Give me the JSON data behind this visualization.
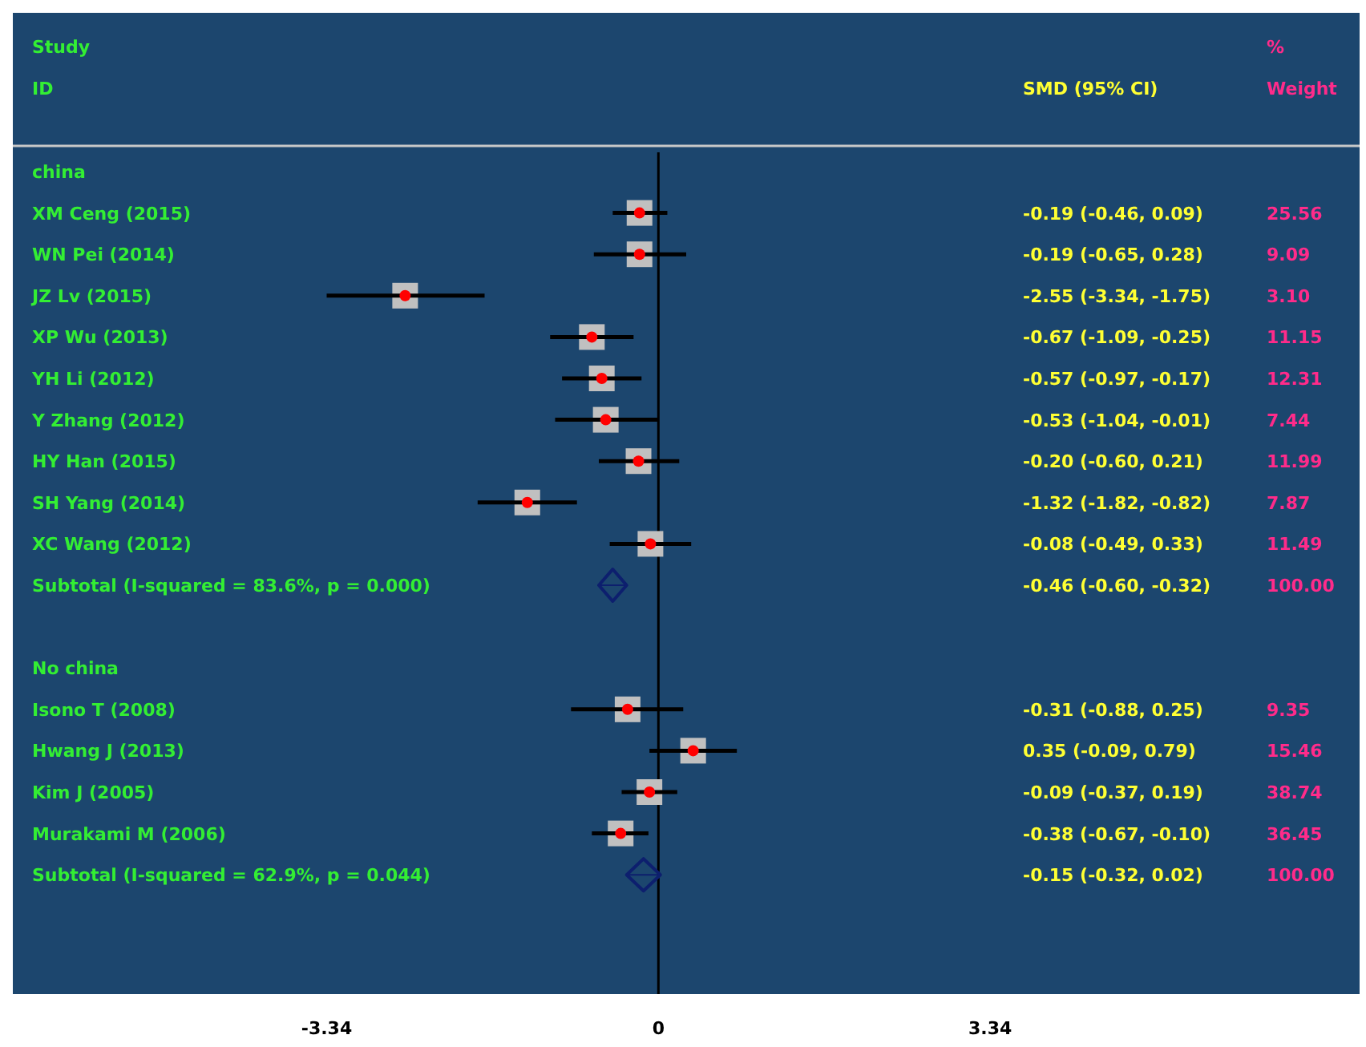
{
  "chart_data": {
    "type": "scatter",
    "orientation": "horizontal",
    "annotations": [
      "Study",
      "ID",
      "SMD (95% CI)",
      "%",
      "Weight",
      "-0.19 (-0.46, 0.09)",
      "25.56",
      "-0.19 (-0.65, 0.28)",
      "9.09",
      "-2.55 (-3.34, -1.75)",
      "3.10",
      "-0.67 (-1.09, -0.25)",
      "11.15",
      "-0.57 (-0.97, -0.17)",
      "12.31",
      "-0.53 (-1.04, -0.01)",
      "7.44",
      "-0.20 (-0.60, 0.21)",
      "11.99",
      "-1.32 (-1.82, -0.82)",
      "7.87",
      "-0.08 (-0.49, 0.33)",
      "11.49",
      "-0.46 (-0.60, -0.32)",
      "100.00",
      "-0.31 (-0.88, 0.25)",
      "9.35",
      "0.35 (-0.09, 0.79)",
      "15.46",
      "-0.09 (-0.37, 0.19)",
      "38.74",
      "-0.38 (-0.67, -0.10)",
      "36.45",
      "-0.15 (-0.32, 0.02)",
      "100.00"
    ],
    "categories": [
      "china",
      "XM Ceng (2015)",
      "WN Pei (2014)",
      "JZ Lv (2015)",
      "XP Wu (2013)",
      "YH Li (2012)",
      "Y Zhang (2012)",
      "HY Han (2015)",
      "SH Yang (2014)",
      "XC Wang (2012)",
      "Subtotal  (I-squared = 83.6%, p = 0.000)",
      null,
      "No china",
      "Isono T (2008)",
      "Hwang J (2013)",
      "Kim J  (2005)",
      "Murakami M (2006)",
      "Subtotal  (I-squared = 62.9%, p = 0.044)"
    ],
    "series": [
      {
        "color": "#c0c0c0",
        "marker": "square",
        "values": [
          null,
          -0.19,
          -0.19,
          -2.55,
          -0.67,
          -0.57,
          -0.53,
          -0.2,
          -1.32,
          -0.08,
          null,
          null,
          null,
          -0.31,
          0.35,
          -0.09,
          -0.38,
          null
        ],
        "errors": [
          null,
          [
            -0.46,
            0.09
          ],
          [
            -0.65,
            0.28
          ],
          [
            -3.34,
            -1.75
          ],
          [
            -1.09,
            -0.25
          ],
          [
            -0.97,
            -0.17
          ],
          [
            -1.04,
            -0.01
          ],
          [
            -0.6,
            0.21
          ],
          [
            -1.82,
            -0.82
          ],
          [
            -0.49,
            0.33
          ],
          null,
          null,
          null,
          [
            -0.88,
            0.25
          ],
          [
            -0.09,
            0.79
          ],
          [
            -0.37,
            0.19
          ],
          [
            -0.67,
            -0.1
          ],
          null
        ]
      },
      {
        "color": "#0d1f6e",
        "marker": "diamond",
        "values": [
          null,
          null,
          null,
          null,
          null,
          null,
          null,
          null,
          null,
          null,
          -0.46,
          null,
          null,
          null,
          null,
          null,
          null,
          -0.15
        ],
        "errors": [
          null,
          null,
          null,
          null,
          null,
          null,
          null,
          null,
          null,
          null,
          [
            -0.6,
            -0.32
          ],
          null,
          null,
          null,
          null,
          null,
          null,
          [
            -0.32,
            0.02
          ]
        ]
      }
    ],
    "xlim": [
      -6.5,
      7.06
    ],
    "xticks": [
      -3.34,
      0,
      3.34
    ],
    "ref_lines": [
      {
        "axis": "x",
        "value": 0,
        "color": "#000000"
      }
    ],
    "grid": false
  }
}
